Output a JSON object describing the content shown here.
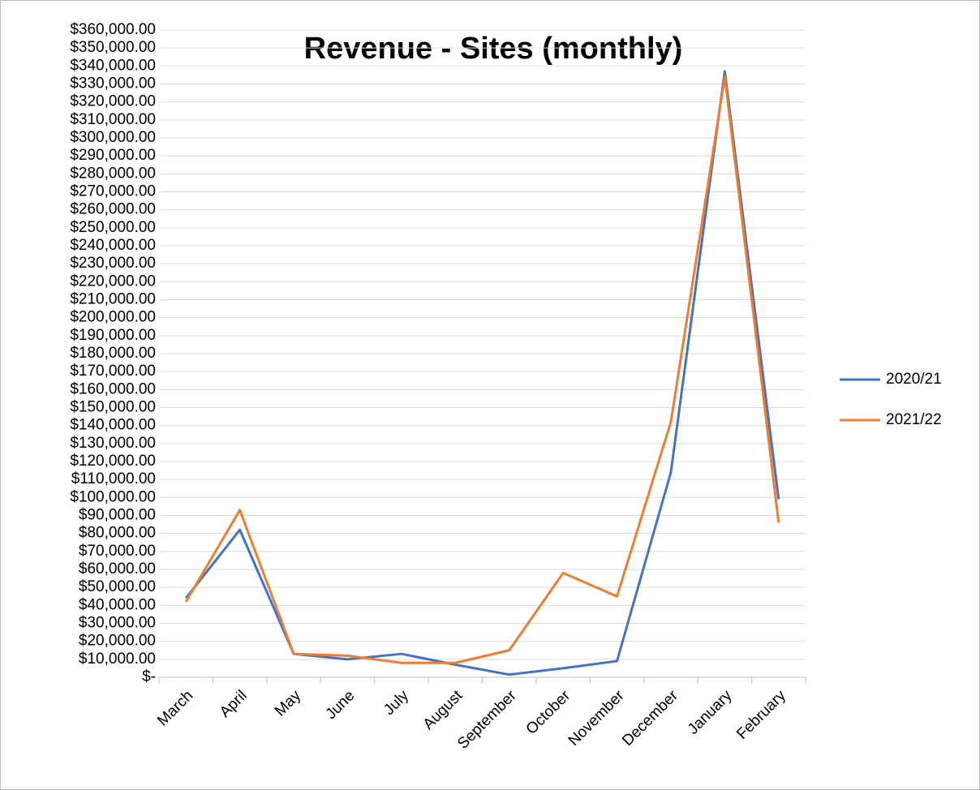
{
  "chart_data": {
    "type": "line",
    "title": "Revenue - Sites (monthly)",
    "categories": [
      "March",
      "April",
      "May",
      "June",
      "July",
      "August",
      "September",
      "October",
      "November",
      "December",
      "January",
      "February"
    ],
    "series": [
      {
        "name": "2020/21",
        "color": "#4472c4",
        "values": [
          44000,
          82000,
          13000,
          10000,
          13000,
          7000,
          1500,
          5000,
          9000,
          114000,
          337000,
          99000
        ]
      },
      {
        "name": "2021/22",
        "color": "#ed7d31",
        "values": [
          42000,
          93000,
          13000,
          12000,
          8000,
          8000,
          15000,
          58000,
          45000,
          142000,
          334000,
          86000
        ]
      }
    ],
    "ylim": [
      0,
      360000
    ],
    "yticks": [
      {
        "value": 0,
        "label": "$-"
      },
      {
        "value": 10000,
        "label": "$10,000.00"
      },
      {
        "value": 20000,
        "label": "$20,000.00"
      },
      {
        "value": 30000,
        "label": "$30,000.00"
      },
      {
        "value": 40000,
        "label": "$40,000.00"
      },
      {
        "value": 50000,
        "label": "$50,000.00"
      },
      {
        "value": 60000,
        "label": "$60,000.00"
      },
      {
        "value": 70000,
        "label": "$70,000.00"
      },
      {
        "value": 80000,
        "label": "$80,000.00"
      },
      {
        "value": 90000,
        "label": "$90,000.00"
      },
      {
        "value": 100000,
        "label": "$100,000.00"
      },
      {
        "value": 110000,
        "label": "$110,000.00"
      },
      {
        "value": 120000,
        "label": "$120,000.00"
      },
      {
        "value": 130000,
        "label": "$130,000.00"
      },
      {
        "value": 140000,
        "label": "$140,000.00"
      },
      {
        "value": 150000,
        "label": "$150,000.00"
      },
      {
        "value": 160000,
        "label": "$160,000.00"
      },
      {
        "value": 170000,
        "label": "$170,000.00"
      },
      {
        "value": 180000,
        "label": "$180,000.00"
      },
      {
        "value": 190000,
        "label": "$190,000.00"
      },
      {
        "value": 200000,
        "label": "$200,000.00"
      },
      {
        "value": 210000,
        "label": "$210,000.00"
      },
      {
        "value": 220000,
        "label": "$220,000.00"
      },
      {
        "value": 230000,
        "label": "$230,000.00"
      },
      {
        "value": 240000,
        "label": "$240,000.00"
      },
      {
        "value": 250000,
        "label": "$250,000.00"
      },
      {
        "value": 260000,
        "label": "$260,000.00"
      },
      {
        "value": 270000,
        "label": "$270,000.00"
      },
      {
        "value": 280000,
        "label": "$280,000.00"
      },
      {
        "value": 290000,
        "label": "$290,000.00"
      },
      {
        "value": 300000,
        "label": "$300,000.00"
      },
      {
        "value": 310000,
        "label": "$310,000.00"
      },
      {
        "value": 320000,
        "label": "$320,000.00"
      },
      {
        "value": 330000,
        "label": "$330,000.00"
      },
      {
        "value": 340000,
        "label": "$340,000.00"
      },
      {
        "value": 350000,
        "label": "$350,000.00"
      },
      {
        "value": 360000,
        "label": "$360,000.00"
      }
    ],
    "grid": true,
    "legend": "right"
  }
}
